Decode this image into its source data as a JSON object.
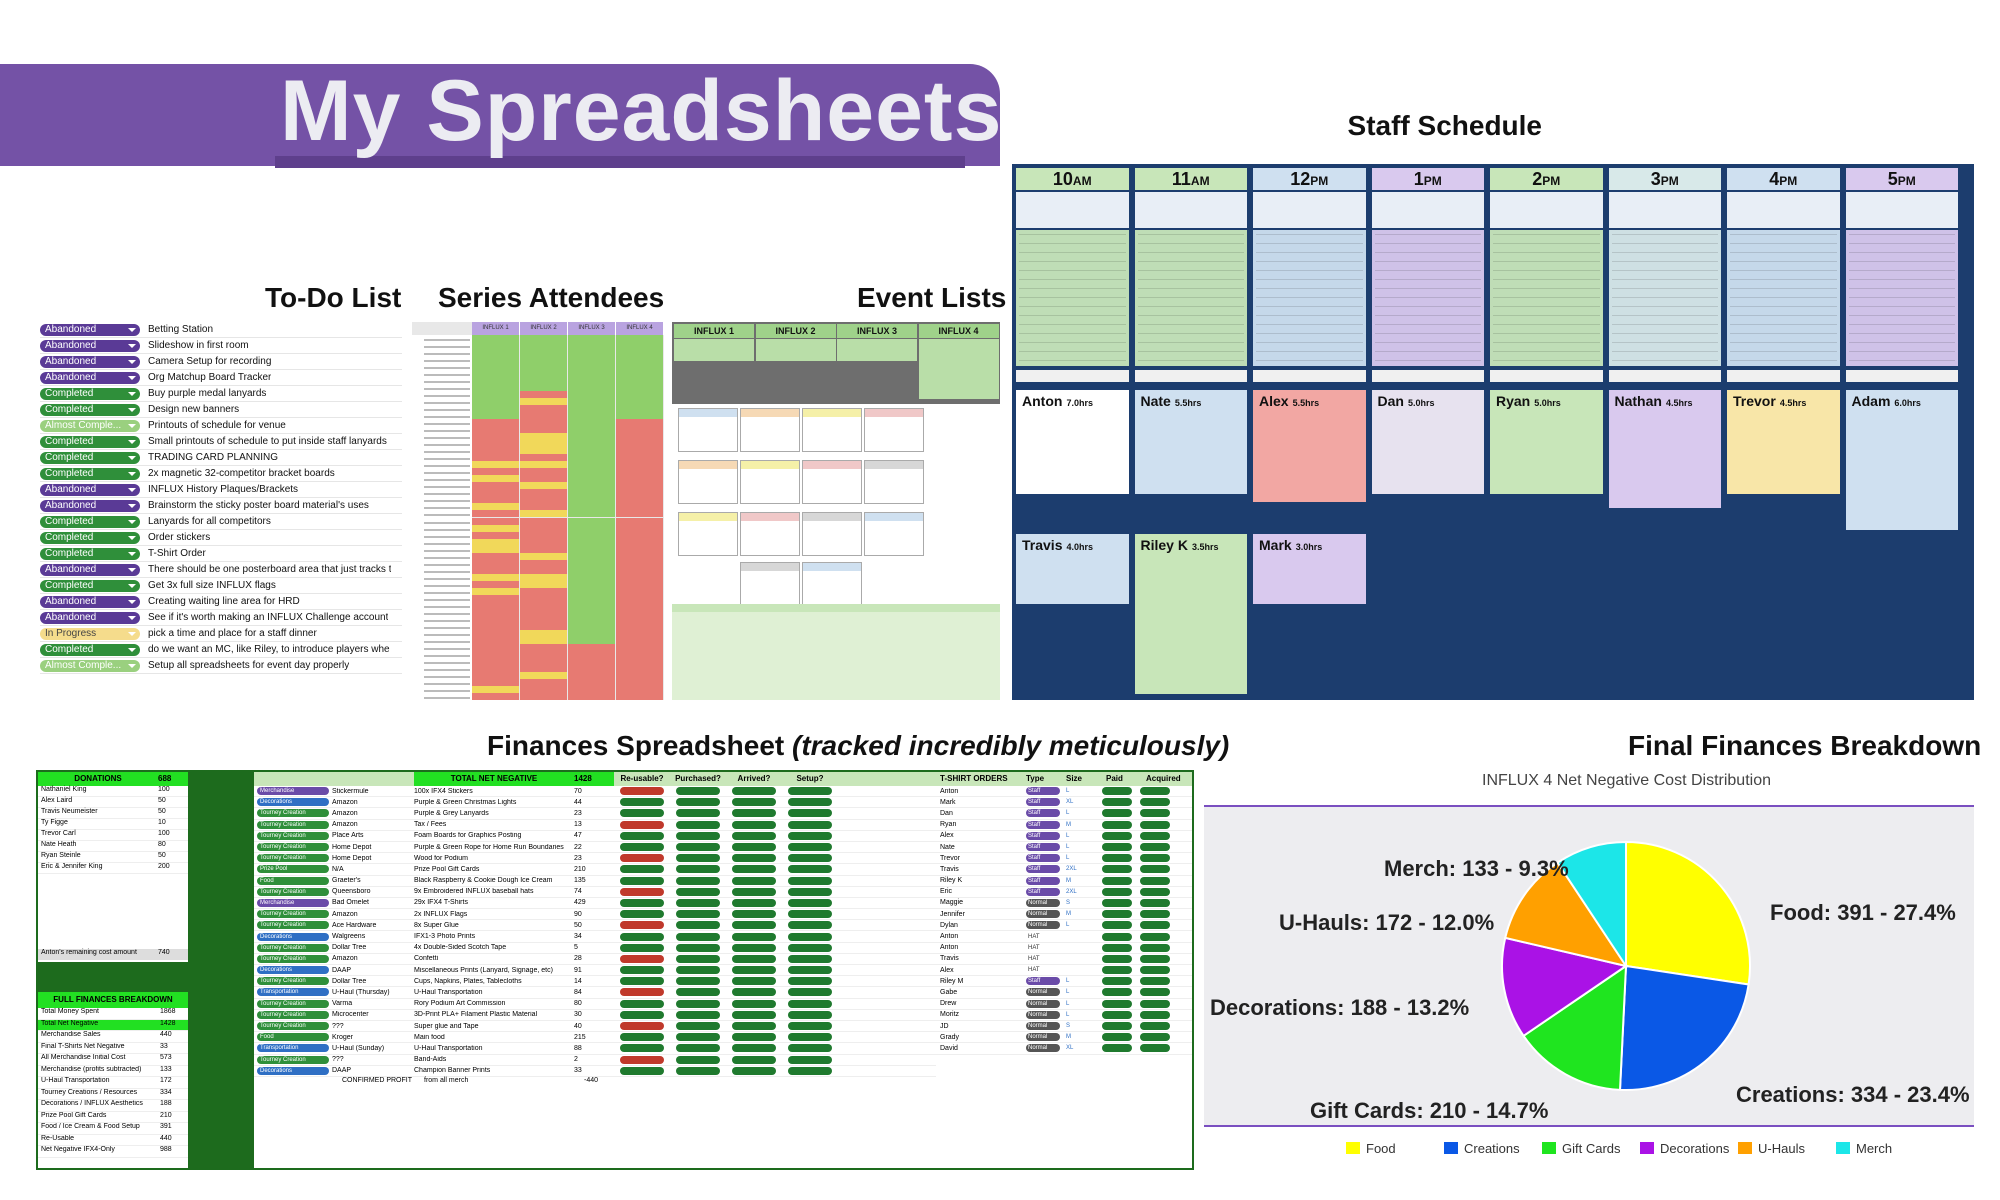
{
  "header": {
    "title": "My Spreadsheets"
  },
  "sections": {
    "todo": "To-Do List",
    "attendees": "Series Attendees",
    "events": "Event Lists",
    "staff": "Staff Schedule",
    "finances_main": "Finances Spreadsheet ",
    "finances_note": "(tracked incredibly meticulously)",
    "final": "Final Finances Breakdown"
  },
  "todo_items": [
    {
      "status": "Abandoned",
      "task": "Betting Station"
    },
    {
      "status": "Abandoned",
      "task": "Slideshow in first room"
    },
    {
      "status": "Abandoned",
      "task": "Camera Setup for recording"
    },
    {
      "status": "Abandoned",
      "task": "Org Matchup Board Tracker"
    },
    {
      "status": "Completed",
      "task": "Buy purple medal lanyards"
    },
    {
      "status": "Completed",
      "task": "Design new banners"
    },
    {
      "status": "Almost Comple...",
      "task": "Printouts of schedule for venue"
    },
    {
      "status": "Completed",
      "task": "Small printouts of schedule to put inside staff lanyards"
    },
    {
      "status": "Completed",
      "task": "TRADING CARD PLANNING"
    },
    {
      "status": "Completed",
      "task": "2x magnetic 32-competitor bracket boards"
    },
    {
      "status": "Abandoned",
      "task": "INFLUX History Plaques/Brackets"
    },
    {
      "status": "Abandoned",
      "task": "Brainstorm the sticky poster board material's uses"
    },
    {
      "status": "Completed",
      "task": "Lanyards for all competitors"
    },
    {
      "status": "Completed",
      "task": "Order stickers"
    },
    {
      "status": "Completed",
      "task": "T-Shirt Order"
    },
    {
      "status": "Abandoned",
      "task": "There should be one posterboard area that just tracks t"
    },
    {
      "status": "Completed",
      "task": "Get 3x full size INFLUX flags"
    },
    {
      "status": "Abandoned",
      "task": "Creating waiting line area for HRD"
    },
    {
      "status": "Abandoned",
      "task": "See if it's worth making an INFLUX Challenge account"
    },
    {
      "status": "In Progress",
      "task": "pick a time and place for a staff dinner"
    },
    {
      "status": "Completed",
      "task": "do we want an MC, like Riley, to introduce players whe"
    },
    {
      "status": "Almost Comple...",
      "task": "Setup all spreadsheets for event day properly"
    }
  ],
  "attendees_headers": [
    "INFLUX 1",
    "INFLUX 2",
    "INFLUX 3",
    "INFLUX 4"
  ],
  "events_headers": [
    "INFLUX 1",
    "INFLUX 2",
    "INFLUX 3",
    "INFLUX 4"
  ],
  "staff": {
    "hours": [
      {
        "h": "10",
        "s": "AM"
      },
      {
        "h": "11",
        "s": "AM"
      },
      {
        "h": "12",
        "s": "PM"
      },
      {
        "h": "1",
        "s": "PM"
      },
      {
        "h": "2",
        "s": "PM"
      },
      {
        "h": "3",
        "s": "PM"
      },
      {
        "h": "4",
        "s": "PM"
      },
      {
        "h": "5",
        "s": "PM"
      }
    ],
    "people_row1": [
      {
        "name": "Anton",
        "hrs": "7.0hrs"
      },
      {
        "name": "Nate",
        "hrs": "5.5hrs"
      },
      {
        "name": "Alex",
        "hrs": "5.5hrs"
      },
      {
        "name": "Dan",
        "hrs": "5.0hrs"
      },
      {
        "name": "Ryan",
        "hrs": "5.0hrs"
      },
      {
        "name": "Nathan",
        "hrs": "4.5hrs"
      },
      {
        "name": "Trevor",
        "hrs": "4.5hrs"
      },
      {
        "name": "Adam",
        "hrs": "6.0hrs"
      }
    ],
    "people_row2": [
      {
        "name": "Travis",
        "hrs": "4.0hrs"
      },
      {
        "name": "Riley K",
        "hrs": "3.5hrs"
      },
      {
        "name": "Mark",
        "hrs": "3.0hrs"
      }
    ]
  },
  "finances": {
    "donations_label": "DONATIONS",
    "donations_total": "688",
    "donors": [
      {
        "name": "Nathaniel King",
        "amt": "100"
      },
      {
        "name": "Alex Laird",
        "amt": "50"
      },
      {
        "name": "Travis Neumeister",
        "amt": "50"
      },
      {
        "name": "Ty Figge",
        "amt": "10"
      },
      {
        "name": "Trevor Carl",
        "amt": "100"
      },
      {
        "name": "Nate Heath",
        "amt": "80"
      },
      {
        "name": "Ryan Steinle",
        "amt": "50"
      },
      {
        "name": "Eric & Jennifer King",
        "amt": "200"
      }
    ],
    "remaining_label": "Anton's remaining cost amount",
    "remaining_value": "740",
    "breakdown_title": "FULL FINANCES BREAKDOWN",
    "breakdown": [
      {
        "k": "Total Money Spent",
        "v": "1868"
      },
      {
        "k": "Total Net Negative",
        "v": "1428"
      },
      {
        "k": "Merchandise Sales",
        "v": "440"
      },
      {
        "k": "Final T-Shirts Net Negative",
        "v": "33"
      },
      {
        "k": "All Merchandise Initial Cost",
        "v": "573"
      },
      {
        "k": "Merchandise (profits subtracted)",
        "v": "133"
      },
      {
        "k": "U-Haul Transportation",
        "v": "172"
      },
      {
        "k": "Tourney Creations / Resources",
        "v": "334"
      },
      {
        "k": "Decorations / INFLUX Aesthetics",
        "v": "188"
      },
      {
        "k": "Prize Pool Gift Cards",
        "v": "210"
      },
      {
        "k": "Food / Ice Cream & Food Setup",
        "v": "391"
      },
      {
        "k": "Re-Usable",
        "v": "440"
      },
      {
        "k": "Net Negative IFX4-Only",
        "v": "988"
      }
    ],
    "main_header": "TOTAL NET NEGATIVE",
    "main_total": "1428",
    "col_heads": [
      "Re-usable?",
      "Purchased?",
      "Arrived?",
      "Setup?"
    ],
    "rows": [
      {
        "cat": "Merchandise",
        "vendor": "Stickermule",
        "item": "100x IFX4 Stickers",
        "amt": "70"
      },
      {
        "cat": "Decorations",
        "vendor": "Amazon",
        "item": "Purple & Green Christmas Lights",
        "amt": "44"
      },
      {
        "cat": "Tourney Creation",
        "vendor": "Amazon",
        "item": "Purple & Grey Lanyards",
        "amt": "23"
      },
      {
        "cat": "Tourney Creation",
        "vendor": "Amazon",
        "item": "Tax / Fees",
        "amt": "13"
      },
      {
        "cat": "Tourney Creation",
        "vendor": "Place Arts",
        "item": "Foam Boards for Graphics Posting",
        "amt": "47"
      },
      {
        "cat": "Tourney Creation",
        "vendor": "Home Depot",
        "item": "Purple & Green Rope for Home Run Boundaries",
        "amt": "22"
      },
      {
        "cat": "Tourney Creation",
        "vendor": "Home Depot",
        "item": "Wood for Podium",
        "amt": "23"
      },
      {
        "cat": "Prize Pool",
        "vendor": "N/A",
        "item": "Prize Pool Gift Cards",
        "amt": "210"
      },
      {
        "cat": "Food",
        "vendor": "Graeter's",
        "item": "Black Raspberry & Cookie Dough Ice Cream",
        "amt": "135"
      },
      {
        "cat": "Tourney Creation",
        "vendor": "Queensboro",
        "item": "9x Embroidered INFLUX baseball hats",
        "amt": "74"
      },
      {
        "cat": "Merchandise",
        "vendor": "Bad Omelet",
        "item": "29x IFX4 T-Shirts",
        "amt": "429"
      },
      {
        "cat": "Tourney Creation",
        "vendor": "Amazon",
        "item": "2x INFLUX Flags",
        "amt": "90"
      },
      {
        "cat": "Tourney Creation",
        "vendor": "Ace Hardware",
        "item": "8x Super Glue",
        "amt": "50"
      },
      {
        "cat": "Decorations",
        "vendor": "Walgreens",
        "item": "IFX1-3 Photo Prints",
        "amt": "34"
      },
      {
        "cat": "Tourney Creation",
        "vendor": "Dollar Tree",
        "item": "4x Double-Sided Scotch Tape",
        "amt": "5"
      },
      {
        "cat": "Tourney Creation",
        "vendor": "Amazon",
        "item": "Confetti",
        "amt": "28"
      },
      {
        "cat": "Decorations",
        "vendor": "DAAP",
        "item": "Miscellaneous Prints (Lanyard, Signage, etc)",
        "amt": "91"
      },
      {
        "cat": "Tourney Creation",
        "vendor": "Dollar Tree",
        "item": "Cups, Napkins, Plates, Tablecloths",
        "amt": "14"
      },
      {
        "cat": "Transportation",
        "vendor": "U-Haul (Thursday)",
        "item": "U-Haul Transportation",
        "amt": "84"
      },
      {
        "cat": "Tourney Creation",
        "vendor": "Varma",
        "item": "Rory Podium Art Commission",
        "amt": "80"
      },
      {
        "cat": "Tourney Creation",
        "vendor": "Microcenter",
        "item": "3D-Print PLA+ Filament Plastic Material",
        "amt": "30"
      },
      {
        "cat": "Tourney Creation",
        "vendor": "???",
        "item": "Super glue and Tape",
        "amt": "40"
      },
      {
        "cat": "Food",
        "vendor": "Kroger",
        "item": "Main food",
        "amt": "215"
      },
      {
        "cat": "Transportation",
        "vendor": "U-Haul (Sunday)",
        "item": "U-Haul Transportation",
        "amt": "88"
      },
      {
        "cat": "Tourney Creation",
        "vendor": "???",
        "item": "Band-Aids",
        "amt": "2"
      },
      {
        "cat": "Decorations",
        "vendor": "DAAP",
        "item": "Champion Banner Prints",
        "amt": "33"
      }
    ],
    "confirmed_label": "CONFIRMED PROFIT",
    "confirmed_from": "from all merch",
    "confirmed_value": "-440",
    "shirts_header": "T-SHIRT ORDERS",
    "shirts_cols": [
      "Type",
      "Size",
      "Paid",
      "Acquired"
    ],
    "shirt_names": [
      "Anton",
      "Mark",
      "Dan",
      "Ryan",
      "Alex",
      "Nate",
      "Trevor",
      "Travis",
      "Riley K",
      "Eric",
      "Maggie",
      "Jennifer",
      "Dylan",
      "Anton",
      "Anton",
      "Travis",
      "Alex",
      "Riley M",
      "Gabe",
      "Drew",
      "Moritz",
      "JD",
      "Grady",
      "David"
    ],
    "shirt_types": [
      "Staff",
      "Staff",
      "Staff",
      "Staff",
      "Staff",
      "Staff",
      "Staff",
      "Staff",
      "Staff",
      "Staff",
      "Normal",
      "Normal",
      "Normal",
      "HAT",
      "HAT",
      "HAT",
      "HAT",
      "Staff",
      "Normal",
      "Normal",
      "Normal",
      "Normal",
      "Normal",
      "Normal"
    ],
    "shirt_sizes": [
      "L",
      "XL",
      "L",
      "M",
      "L",
      "L",
      "L",
      "2XL",
      "M",
      "2XL",
      "S",
      "M",
      "L",
      "",
      "",
      "",
      "",
      "L",
      "L",
      "L",
      "L",
      "S",
      "M",
      "XL"
    ]
  },
  "pie": {
    "chart_data": {
      "type": "pie",
      "title": "INFLUX 4 Net Negative Cost Distribution",
      "labels": [
        "Food",
        "Creations",
        "Gift Cards",
        "Decorations",
        "U-Hauls",
        "Merch"
      ],
      "values": [
        391,
        334,
        210,
        188,
        172,
        133
      ],
      "percent_labels": [
        "27.4%",
        "23.4%",
        "14.7%",
        "13.2%",
        "12.0%",
        "9.3%"
      ],
      "slice_labels": [
        "Food: 391 - 27.4%",
        "Creations: 334 - 23.4%",
        "Gift Cards: 210 - 14.7%",
        "Decorations: 188 - 13.2%",
        "U-Hauls: 172 - 12.0%",
        "Merch: 133 - 9.3%"
      ],
      "colors": [
        "#ffff00",
        "#0a58e6",
        "#1fe51f",
        "#aa12e6",
        "#ffa000",
        "#1ce6e8"
      ],
      "legend_position": "bottom"
    }
  }
}
